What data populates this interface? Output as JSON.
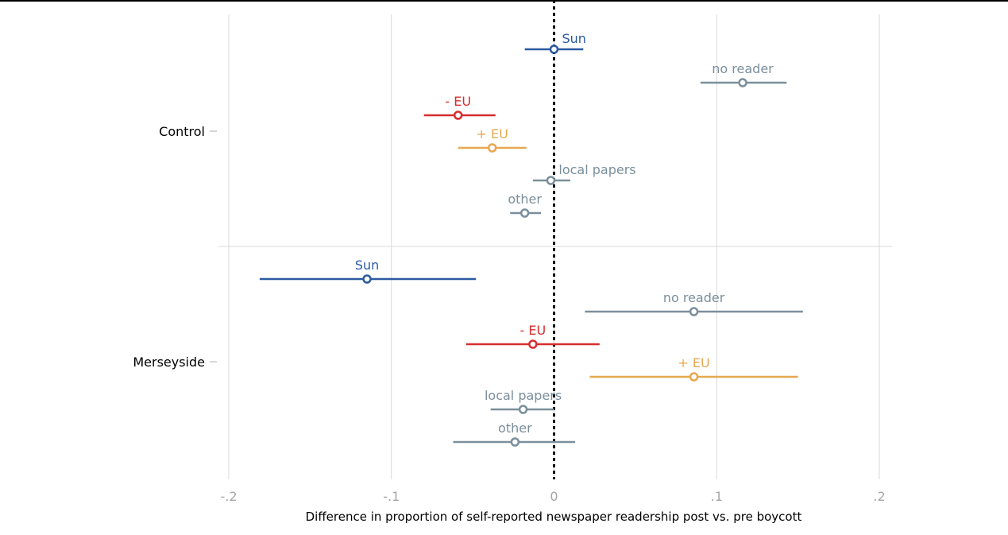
{
  "chart_data": {
    "type": "scatter",
    "subtype": "dot-whisker",
    "title": "",
    "xlabel": "Difference in proportion of self-reported newspaper readership post vs. pre boycott",
    "ylabel": "",
    "xlim": [
      -0.2,
      0.2
    ],
    "x_ticks": [
      {
        "value": -0.2,
        "label": "-.2"
      },
      {
        "value": -0.1,
        "label": "-.1"
      },
      {
        "value": 0,
        "label": "0"
      },
      {
        "value": 0.1,
        "label": ".1"
      },
      {
        "value": 0.2,
        "label": ".2"
      }
    ],
    "reference_line": 0,
    "grid": true,
    "legend": "none",
    "colors": {
      "Sun": "#2c5aa0",
      "no reader": "#7a8f9c",
      "- EU": "#d62f2f",
      "+ EU": "#e8a850",
      "local papers": "#7a8f9c",
      "other": "#7a8f9c"
    },
    "groups": [
      {
        "name": "Control",
        "points": [
          {
            "label": "Sun",
            "estimate": 0.0,
            "ci": [
              -0.018,
              0.018
            ],
            "label_side": "right"
          },
          {
            "label": "no reader",
            "estimate": 0.116,
            "ci": [
              0.09,
              0.143
            ],
            "label_side": "above"
          },
          {
            "label": "- EU",
            "estimate": -0.059,
            "ci": [
              -0.08,
              -0.036
            ],
            "label_side": "above"
          },
          {
            "label": "+ EU",
            "estimate": -0.038,
            "ci": [
              -0.059,
              -0.017
            ],
            "label_side": "above"
          },
          {
            "label": "local papers",
            "estimate": -0.002,
            "ci": [
              -0.013,
              0.01
            ],
            "label_side": "right"
          },
          {
            "label": "other",
            "estimate": -0.018,
            "ci": [
              -0.027,
              -0.008
            ],
            "label_side": "above"
          }
        ]
      },
      {
        "name": "Merseyside",
        "points": [
          {
            "label": "Sun",
            "estimate": -0.115,
            "ci": [
              -0.181,
              -0.048
            ],
            "label_side": "above"
          },
          {
            "label": "no reader",
            "estimate": 0.086,
            "ci": [
              0.019,
              0.153
            ],
            "label_side": "above"
          },
          {
            "label": "- EU",
            "estimate": -0.013,
            "ci": [
              -0.054,
              0.028
            ],
            "label_side": "above"
          },
          {
            "label": "+ EU",
            "estimate": 0.086,
            "ci": [
              0.022,
              0.15
            ],
            "label_side": "above"
          },
          {
            "label": "local papers",
            "estimate": -0.019,
            "ci": [
              -0.039,
              0.0
            ],
            "label_side": "above"
          },
          {
            "label": "other",
            "estimate": -0.024,
            "ci": [
              -0.062,
              0.013
            ],
            "label_side": "above"
          }
        ]
      }
    ]
  }
}
